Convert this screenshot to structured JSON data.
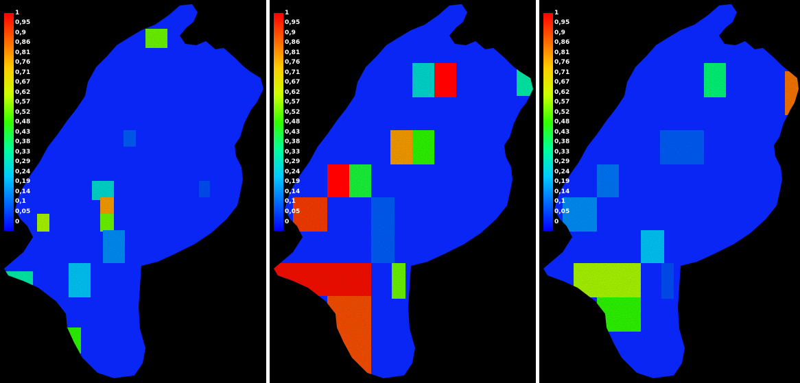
{
  "colors": {
    "background": "#000000",
    "region_base": "#0a26f5",
    "separator": "#ffffff"
  },
  "legend": {
    "labels": [
      "1",
      "0,95",
      "0,9",
      "0,86",
      "0,81",
      "0,76",
      "0,71",
      "0,67",
      "0,62",
      "0,57",
      "0,52",
      "0,48",
      "0,43",
      "0,38",
      "0,33",
      "0,29",
      "0,24",
      "0,19",
      "0,14",
      "0,1",
      "0,05",
      "0"
    ],
    "colormap": [
      "#0000ff",
      "#0066ff",
      "#00ccff",
      "#00ff99",
      "#33ff00",
      "#ccff00",
      "#ffcc00",
      "#ff6600",
      "#ff0000"
    ]
  },
  "panels": [
    {
      "cells": [
        {
          "value": 0.55,
          "grain": true,
          "note": "NE tile"
        },
        {
          "value": 0.3,
          "grain": true
        },
        {
          "value": 0.12,
          "grain": true
        },
        {
          "value": 0.8,
          "grain": true
        },
        {
          "value": 0.55,
          "grain": true
        },
        {
          "value": 0.18,
          "grain": true
        },
        {
          "value": 0.6,
          "grain": true
        },
        {
          "value": 0.25,
          "grain": true
        },
        {
          "value": 0.35,
          "grain": true
        },
        {
          "value": 0.5,
          "grain": true
        },
        {
          "value": 0.1,
          "grain": true
        }
      ]
    },
    {
      "cells": [
        {
          "value": 0.3,
          "grain": true
        },
        {
          "value": 1.0,
          "grain": false
        },
        {
          "value": 0.8,
          "grain": true
        },
        {
          "value": 0.5,
          "grain": true
        },
        {
          "value": 1.0,
          "grain": false
        },
        {
          "value": 0.45,
          "grain": true
        },
        {
          "value": 0.92,
          "grain": true
        },
        {
          "value": 0.12,
          "grain": true
        },
        {
          "value": 0.97,
          "grain": true
        },
        {
          "value": 0.9,
          "grain": true
        },
        {
          "value": 0.55,
          "grain": true
        },
        {
          "value": 0.35,
          "grain": true
        }
      ]
    },
    {
      "cells": [
        {
          "value": 0.4,
          "grain": true
        },
        {
          "value": 0.85,
          "grain": true
        },
        {
          "value": 0.12,
          "grain": true
        },
        {
          "value": 0.15,
          "grain": true
        },
        {
          "value": 0.18,
          "grain": true
        },
        {
          "value": 0.6,
          "grain": true
        },
        {
          "value": 0.5,
          "grain": true
        },
        {
          "value": 0.25,
          "grain": true
        },
        {
          "value": 0.1,
          "grain": true
        }
      ]
    }
  ]
}
